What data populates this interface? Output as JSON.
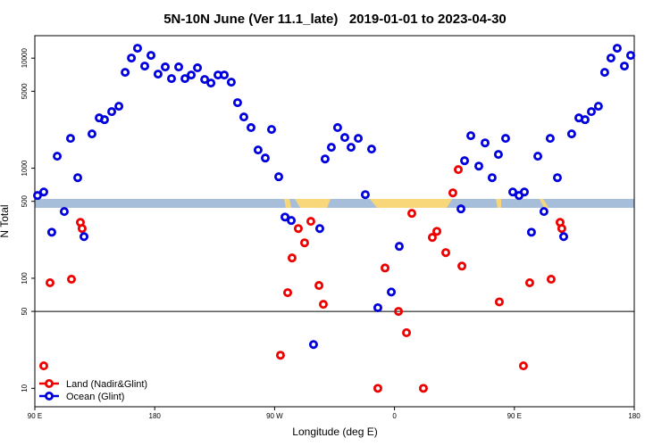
{
  "chart_data": {
    "type": "scatter",
    "title": "5N-10N June (Ver 11.1_late)   2019-01-01 to 2023-04-30",
    "x_label": "Longitude (deg E)",
    "y_label": "N Total",
    "xlim": [
      90,
      540
    ],
    "xticks": [
      {
        "value": 90,
        "label": "90 E"
      },
      180,
      {
        "value": 270,
        "label": "90 W"
      },
      {
        "value": 360,
        "label": "0"
      },
      {
        "value": 450,
        "label": "90 E"
      },
      {
        "value": 540,
        "label": "180"
      }
    ],
    "ylim": [
      6.8,
      16000
    ],
    "yticks": [
      10,
      50,
      100,
      500,
      1000,
      5000,
      10000
    ],
    "ylog": true,
    "hline": 50,
    "legend": "lower left",
    "series": [
      {
        "name": "Land (Nadir&Glint)",
        "color": "#ee0000",
        "x": [
          96.7,
          101.4,
          117.5,
          124.2,
          125.5,
          274.4,
          279.8,
          283.1,
          287.8,
          292.5,
          297.2,
          303.3,
          306.6,
          347.5,
          352.9,
          363.0,
          369.0,
          373.0,
          381.7,
          388.4,
          391.8,
          398.5,
          403.8,
          407.9,
          410.6,
          438.7,
          456.8,
          461.5,
          477.6,
          484.3,
          485.6
        ],
        "values": [
          16,
          91,
          98,
          322,
          283,
          20,
          74,
          153,
          283,
          210,
          329,
          86,
          58,
          10,
          124,
          50,
          32,
          389,
          10,
          235,
          267,
          171,
          597,
          971,
          129,
          61,
          16,
          91,
          98,
          322,
          283
        ]
      },
      {
        "name": "Ocean (Glint)",
        "color": "#0000dd",
        "x": [
          92.0,
          96.7,
          102.7,
          106.8,
          112.1,
          116.8,
          122.2,
          126.9,
          132.9,
          138.3,
          142.3,
          147.7,
          153.1,
          157.8,
          162.5,
          167.1,
          172.5,
          177.2,
          182.5,
          187.9,
          192.6,
          198.0,
          202.7,
          207.4,
          212.1,
          217.5,
          222.2,
          227.5,
          232.2,
          237.5,
          242.2,
          246.9,
          252.3,
          257.6,
          263.0,
          267.7,
          273.1,
          277.8,
          282.5,
          299.2,
          303.9,
          307.9,
          312.6,
          317.3,
          322.7,
          327.4,
          332.8,
          338.1,
          342.8,
          347.5,
          357.6,
          363.6,
          409.9,
          412.6,
          417.3,
          423.3,
          428.0,
          433.3,
          438.0,
          443.4,
          448.8,
          453.5,
          457.5,
          462.8,
          467.6,
          472.2,
          476.9,
          482.3,
          487.0,
          493.0,
          498.4,
          503.1,
          507.8,
          513.1,
          517.8,
          522.5,
          527.2,
          532.6,
          537.3
        ],
        "values": [
          565,
          608,
          262,
          1285,
          404,
          1866,
          820,
          239,
          2050,
          2865,
          2760,
          3266,
          3655,
          7430,
          10020,
          12300,
          8470,
          10600,
          7160,
          8320,
          6520,
          8320,
          6520,
          7030,
          8170,
          6400,
          5940,
          7030,
          7030,
          6050,
          3940,
          2920,
          2340,
          1465,
          1237,
          2250,
          836,
          360,
          335,
          25,
          283,
          1213,
          1549,
          2340,
          1901,
          1549,
          1866,
          575,
          1492,
          54,
          75,
          195,
          427,
          1170,
          1974,
          1045,
          1698,
          820,
          1334,
          1866,
          608,
          565,
          608,
          262,
          1285,
          404,
          1866,
          820,
          239,
          2050,
          2865,
          2760,
          3266,
          3655,
          7430,
          10020,
          12300,
          8470,
          10600
        ]
      }
    ]
  }
}
